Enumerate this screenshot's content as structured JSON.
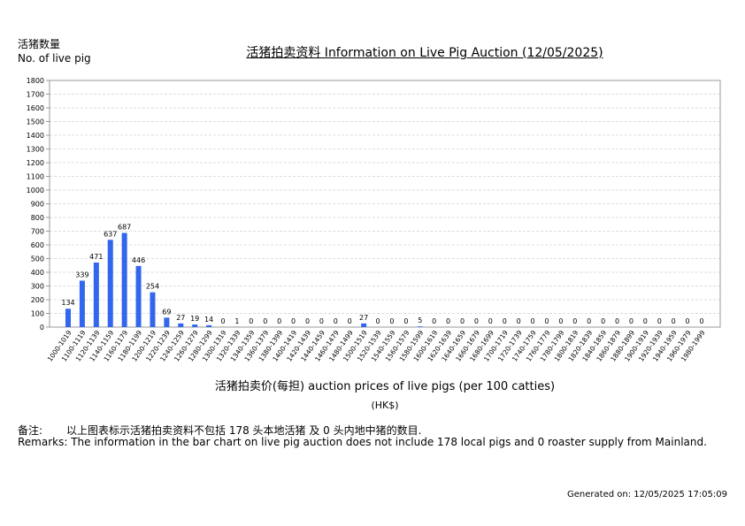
{
  "y_axis_title": {
    "zh": "活猪数量",
    "en": "No. of live pig"
  },
  "title": "活猪拍卖资料 Information on Live Pig Auction (12/05/2025)",
  "x_axis_title": "活猪拍卖价(每担) auction prices of live pigs (per 100 catties)",
  "unit": "(HK$)",
  "remarks": {
    "zh_label": "备注:",
    "zh_text": "以上图表标示活猪拍卖资料不包括 178 头本地活猪 及 0 头内地中猪的数目.",
    "en": "Remarks: The information in the bar chart on live pig auction does not include 178 local pigs and 0 roaster supply from Mainland."
  },
  "generated": "Generated on: 12/05/2025 17:05:09",
  "colors": {
    "bar": "#3366ee",
    "grid": "#dddddd",
    "axis": "#999999"
  },
  "chart_data": {
    "type": "bar",
    "title": "活猪拍卖资料 Information on Live Pig Auction (12/05/2025)",
    "xlabel": "活猪拍卖价(每担) auction prices of live pigs (per 100 catties) (HK$)",
    "ylabel": "活猪数量 No. of live pig",
    "ylim": [
      0,
      1800
    ],
    "yticks": [
      0,
      100,
      200,
      300,
      400,
      500,
      600,
      700,
      800,
      900,
      1000,
      1100,
      1200,
      1300,
      1400,
      1500,
      1600,
      1700,
      1800
    ],
    "grid": true,
    "legend": null,
    "categories": [
      "1000-1019",
      "1100-1119",
      "1120-1139",
      "1140-1159",
      "1160-1179",
      "1180-1199",
      "1200-1219",
      "1220-1239",
      "1240-1259",
      "1260-1279",
      "1280-1299",
      "1300-1319",
      "1320-1339",
      "1340-1359",
      "1360-1379",
      "1380-1399",
      "1400-1419",
      "1420-1439",
      "1440-1459",
      "1460-1479",
      "1480-1499",
      "1500-1519",
      "1520-1539",
      "1540-1559",
      "1560-1579",
      "1580-1599",
      "1600-1619",
      "1620-1639",
      "1640-1659",
      "1660-1679",
      "1680-1699",
      "1700-1719",
      "1720-1739",
      "1740-1759",
      "1760-1779",
      "1780-1799",
      "1800-1819",
      "1820-1839",
      "1840-1859",
      "1860-1879",
      "1880-1899",
      "1900-1919",
      "1920-1939",
      "1940-1959",
      "1960-1979",
      "1980-1999"
    ],
    "values": [
      134,
      339,
      471,
      637,
      687,
      446,
      254,
      69,
      27,
      19,
      14,
      0,
      1,
      0,
      0,
      0,
      0,
      0,
      0,
      0,
      0,
      27,
      0,
      0,
      0,
      5,
      0,
      0,
      0,
      0,
      0,
      0,
      0,
      0,
      0,
      0,
      0,
      0,
      0,
      0,
      0,
      0,
      0,
      0,
      0,
      0
    ]
  }
}
